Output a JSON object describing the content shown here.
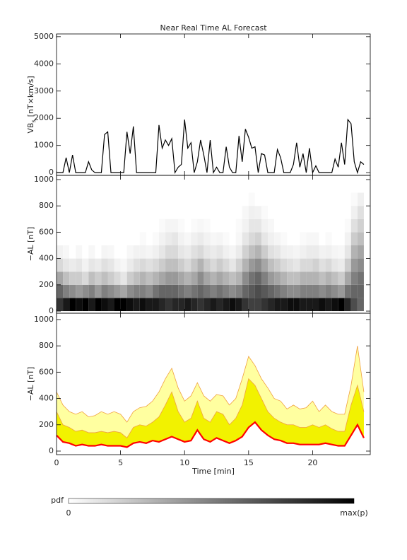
{
  "chart_data": {
    "charts": [
      {
        "type": "line",
        "title": "Near Real Time AL Forecast",
        "ylabel_main": "VB",
        "ylabel_sub": "s",
        "ylabel_unit": "[nT×km/s]",
        "color": "#000000",
        "xlim": [
          0,
          24.5
        ],
        "ylim": [
          -100,
          5100
        ],
        "yticks": [
          0,
          1000,
          2000,
          3000,
          4000,
          5000
        ],
        "x": [
          0,
          0.25,
          0.5,
          0.75,
          1,
          1.25,
          1.5,
          1.75,
          2,
          2.25,
          2.5,
          2.75,
          3,
          3.25,
          3.5,
          3.75,
          4,
          4.25,
          4.5,
          4.75,
          5,
          5.25,
          5.5,
          5.75,
          6,
          6.25,
          6.5,
          6.75,
          7,
          7.25,
          7.5,
          7.75,
          8,
          8.25,
          8.5,
          8.75,
          9,
          9.25,
          9.5,
          9.75,
          10,
          10.25,
          10.5,
          10.75,
          11,
          11.25,
          11.5,
          11.75,
          12,
          12.25,
          12.5,
          12.75,
          13,
          13.25,
          13.5,
          13.75,
          14,
          14.25,
          14.5,
          14.75,
          15,
          15.25,
          15.5,
          15.75,
          16,
          16.25,
          16.5,
          16.75,
          17,
          17.25,
          17.5,
          17.75,
          18,
          18.25,
          18.5,
          18.75,
          19,
          19.25,
          19.5,
          19.75,
          20,
          20.25,
          20.5,
          20.75,
          21,
          21.25,
          21.5,
          21.75,
          22,
          22.25,
          22.5,
          22.75,
          23,
          23.25,
          23.5,
          23.75,
          24
        ],
        "values": [
          0,
          0,
          0,
          550,
          0,
          650,
          0,
          0,
          0,
          0,
          400,
          100,
          0,
          0,
          0,
          1400,
          1500,
          0,
          0,
          0,
          0,
          0,
          1500,
          700,
          1700,
          0,
          0,
          0,
          0,
          0,
          0,
          0,
          1750,
          900,
          1200,
          1000,
          1250,
          0,
          200,
          300,
          1950,
          900,
          1100,
          0,
          400,
          1200,
          650,
          0,
          1200,
          0,
          200,
          0,
          0,
          950,
          200,
          0,
          0,
          1350,
          400,
          1600,
          1300,
          900,
          950,
          0,
          700,
          650,
          0,
          0,
          0,
          850,
          550,
          0,
          0,
          0,
          300,
          1100,
          200,
          700,
          0,
          900,
          0,
          250,
          0,
          0,
          0,
          0,
          0,
          500,
          200,
          1100,
          300,
          1950,
          1800,
          400,
          0,
          400,
          300
        ]
      },
      {
        "type": "heatmap",
        "ylabel": "−AL [nT]",
        "xlim": [
          0,
          24.5
        ],
        "ylim": [
          -16,
          1032
        ],
        "yticks": [
          0,
          200,
          400,
          600,
          800,
          1000
        ],
        "xbins": [
          0,
          0.5,
          1,
          1.5,
          2,
          2.5,
          3,
          3.5,
          4,
          4.5,
          5,
          5.5,
          6,
          6.5,
          7,
          7.5,
          8,
          8.5,
          9,
          9.5,
          10,
          10.5,
          11,
          11.5,
          12,
          12.5,
          13,
          13.5,
          14,
          14.5,
          15,
          15.5,
          16,
          16.5,
          17,
          17.5,
          18,
          18.5,
          19,
          19.5,
          20,
          20.5,
          21,
          21.5,
          22,
          22.5,
          23,
          23.5,
          24
        ],
        "ybins": [
          0,
          100,
          200,
          300,
          400,
          500,
          600,
          700,
          800,
          900
        ],
        "z": [
          [
            0.8,
            0.6,
            0.35,
            0.15,
            0.05,
            0,
            0,
            0,
            0
          ],
          [
            0.9,
            0.5,
            0.25,
            0.1,
            0.03,
            0,
            0,
            0,
            0
          ],
          [
            1,
            0.45,
            0.2,
            0.08,
            0,
            0,
            0,
            0,
            0
          ],
          [
            0.95,
            0.4,
            0.2,
            0.1,
            0.03,
            0,
            0,
            0,
            0
          ],
          [
            1,
            0.45,
            0.15,
            0.05,
            0,
            0,
            0,
            0,
            0
          ],
          [
            0.9,
            0.5,
            0.25,
            0.1,
            0.03,
            0,
            0,
            0,
            0
          ],
          [
            1,
            0.4,
            0.2,
            0.08,
            0,
            0,
            0,
            0,
            0
          ],
          [
            0.95,
            0.5,
            0.25,
            0.12,
            0.04,
            0,
            0,
            0,
            0
          ],
          [
            0.9,
            0.45,
            0.2,
            0.1,
            0.03,
            0,
            0,
            0,
            0
          ],
          [
            1,
            0.4,
            0.15,
            0.05,
            0,
            0,
            0,
            0,
            0
          ],
          [
            1,
            0.35,
            0.1,
            0.03,
            0,
            0,
            0,
            0,
            0
          ],
          [
            0.95,
            0.45,
            0.2,
            0.08,
            0.03,
            0,
            0,
            0,
            0
          ],
          [
            0.9,
            0.5,
            0.25,
            0.12,
            0.05,
            0,
            0,
            0,
            0
          ],
          [
            0.95,
            0.5,
            0.3,
            0.15,
            0.05,
            0.02,
            0,
            0,
            0
          ],
          [
            0.9,
            0.45,
            0.25,
            0.12,
            0.04,
            0,
            0,
            0,
            0
          ],
          [
            0.9,
            0.55,
            0.3,
            0.15,
            0.06,
            0.02,
            0,
            0,
            0
          ],
          [
            0.85,
            0.6,
            0.35,
            0.2,
            0.1,
            0.05,
            0.02,
            0,
            0
          ],
          [
            0.8,
            0.6,
            0.4,
            0.25,
            0.15,
            0.08,
            0.04,
            0,
            0
          ],
          [
            0.85,
            0.6,
            0.4,
            0.25,
            0.15,
            0.1,
            0.04,
            0,
            0
          ],
          [
            0.85,
            0.55,
            0.35,
            0.2,
            0.1,
            0.05,
            0.02,
            0,
            0
          ],
          [
            0.9,
            0.5,
            0.3,
            0.15,
            0.08,
            0.03,
            0,
            0,
            0
          ],
          [
            0.85,
            0.55,
            0.35,
            0.22,
            0.12,
            0.06,
            0.02,
            0,
            0
          ],
          [
            0.8,
            0.6,
            0.45,
            0.3,
            0.15,
            0.08,
            0.03,
            0,
            0
          ],
          [
            0.85,
            0.55,
            0.35,
            0.2,
            0.1,
            0.05,
            0.02,
            0,
            0
          ],
          [
            0.9,
            0.5,
            0.3,
            0.15,
            0.08,
            0.03,
            0,
            0,
            0
          ],
          [
            0.85,
            0.55,
            0.35,
            0.2,
            0.1,
            0.04,
            0,
            0,
            0
          ],
          [
            0.9,
            0.5,
            0.3,
            0.15,
            0.06,
            0.02,
            0,
            0,
            0
          ],
          [
            0.95,
            0.45,
            0.25,
            0.1,
            0.04,
            0,
            0,
            0,
            0
          ],
          [
            0.9,
            0.5,
            0.3,
            0.18,
            0.08,
            0.03,
            0.02,
            0,
            0
          ],
          [
            0.8,
            0.6,
            0.45,
            0.3,
            0.18,
            0.1,
            0.05,
            0.03,
            0
          ],
          [
            0.75,
            0.65,
            0.55,
            0.4,
            0.25,
            0.15,
            0.1,
            0.06,
            0.02
          ],
          [
            0.75,
            0.7,
            0.6,
            0.45,
            0.3,
            0.18,
            0.1,
            0.05,
            0
          ],
          [
            0.8,
            0.65,
            0.5,
            0.35,
            0.2,
            0.1,
            0.05,
            0.02,
            0
          ],
          [
            0.85,
            0.6,
            0.4,
            0.25,
            0.12,
            0.06,
            0.03,
            0,
            0
          ],
          [
            0.9,
            0.55,
            0.35,
            0.2,
            0.1,
            0.04,
            0,
            0,
            0
          ],
          [
            0.9,
            0.5,
            0.3,
            0.15,
            0.06,
            0.02,
            0,
            0,
            0
          ],
          [
            0.95,
            0.45,
            0.25,
            0.12,
            0.05,
            0,
            0,
            0,
            0
          ],
          [
            0.95,
            0.45,
            0.25,
            0.1,
            0.04,
            0,
            0,
            0,
            0
          ],
          [
            0.9,
            0.5,
            0.3,
            0.15,
            0.06,
            0.02,
            0,
            0,
            0
          ],
          [
            0.9,
            0.5,
            0.3,
            0.15,
            0.08,
            0.03,
            0,
            0,
            0
          ],
          [
            0.9,
            0.5,
            0.3,
            0.18,
            0.08,
            0.03,
            0,
            0,
            0
          ],
          [
            0.95,
            0.45,
            0.25,
            0.12,
            0.05,
            0,
            0,
            0,
            0
          ],
          [
            0.9,
            0.5,
            0.3,
            0.15,
            0.06,
            0.02,
            0,
            0,
            0
          ],
          [
            0.95,
            0.45,
            0.25,
            0.1,
            0.04,
            0,
            0,
            0,
            0
          ],
          [
            1,
            0.4,
            0.2,
            0.08,
            0.03,
            0,
            0,
            0,
            0
          ],
          [
            0.85,
            0.55,
            0.35,
            0.2,
            0.1,
            0.05,
            0.02,
            0,
            0
          ],
          [
            0.7,
            0.6,
            0.5,
            0.4,
            0.3,
            0.2,
            0.12,
            0.06,
            0.02
          ],
          [
            0.6,
            0.6,
            0.55,
            0.45,
            0.35,
            0.25,
            0.18,
            0.12,
            0.06
          ]
        ]
      },
      {
        "type": "band",
        "ylabel": "−AL [nT]",
        "xlabel": "Time [min]",
        "xlim": [
          0,
          24.5
        ],
        "ylim": [
          -27,
          1048
        ],
        "yticks": [
          0,
          200,
          400,
          600,
          800,
          1000
        ],
        "xticks": [
          0,
          5,
          10,
          15,
          20
        ],
        "edge_color": "#f0a040",
        "x": [
          0,
          0.5,
          1,
          1.5,
          2,
          2.5,
          3,
          3.5,
          4,
          4.5,
          5,
          5.5,
          6,
          6.5,
          7,
          7.5,
          8,
          8.5,
          9,
          9.5,
          10,
          10.5,
          11,
          11.5,
          12,
          12.5,
          13,
          13.5,
          14,
          14.5,
          15,
          15.5,
          16,
          16.5,
          17,
          17.5,
          18,
          18.5,
          19,
          19.5,
          20,
          20.5,
          21,
          21.5,
          22,
          22.5,
          23,
          23.5,
          24
        ],
        "series": [
          {
            "color": "#ffffa0",
            "values": [
              450,
              350,
              300,
              280,
              300,
              260,
              270,
              300,
              280,
              300,
              280,
              220,
              300,
              330,
              340,
              380,
              450,
              550,
              630,
              480,
              380,
              420,
              520,
              420,
              380,
              430,
              420,
              350,
              400,
              550,
              720,
              650,
              550,
              480,
              400,
              380,
              320,
              350,
              320,
              330,
              380,
              300,
              350,
              300,
              280,
              280,
              500,
              800,
              450
            ]
          },
          {
            "color": "#f2f200",
            "values": [
              300,
              200,
              180,
              150,
              160,
              140,
              140,
              150,
              140,
              150,
              140,
              100,
              180,
              200,
              190,
              220,
              260,
              350,
              450,
              300,
              220,
              250,
              380,
              250,
              220,
              300,
              280,
              200,
              250,
              350,
              550,
              500,
              400,
              300,
              250,
              220,
              200,
              200,
              180,
              180,
              200,
              180,
              200,
              170,
              150,
              150,
              350,
              500,
              300
            ]
          },
          {
            "color": "#ff0000",
            "values": [
              120,
              70,
              60,
              40,
              50,
              40,
              40,
              50,
              40,
              40,
              40,
              30,
              60,
              70,
              60,
              80,
              70,
              90,
              110,
              90,
              70,
              80,
              160,
              90,
              70,
              100,
              80,
              60,
              80,
              110,
              180,
              220,
              160,
              120,
              90,
              80,
              60,
              60,
              50,
              50,
              50,
              50,
              60,
              50,
              40,
              40,
              120,
              200,
              100
            ]
          }
        ]
      }
    ],
    "colorbar": {
      "label": "pdf",
      "min_label": "0",
      "max_label": "max(p)"
    }
  }
}
